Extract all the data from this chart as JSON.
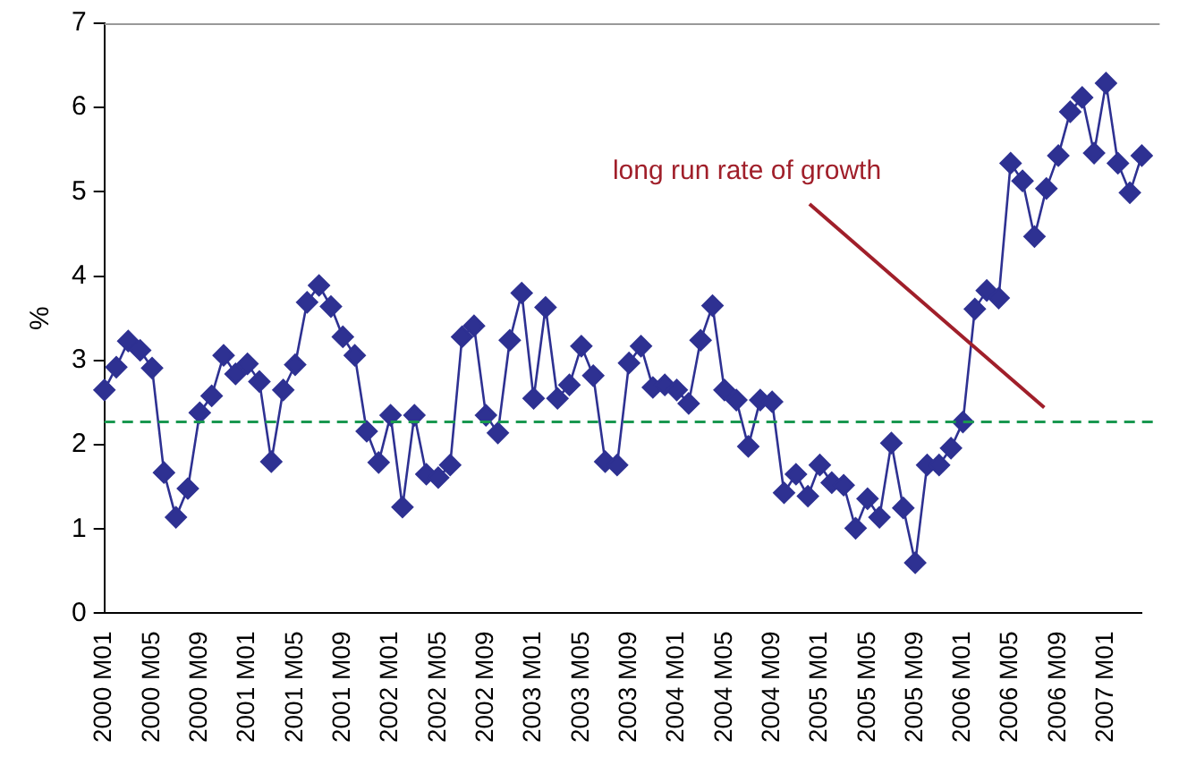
{
  "chart_data": {
    "type": "line",
    "ylabel": "%",
    "categories": [
      "2000 M01",
      null,
      null,
      null,
      "2000 M05",
      null,
      null,
      null,
      "2000 M09",
      null,
      null,
      null,
      "2001 M01",
      null,
      null,
      null,
      "2001 M05",
      null,
      null,
      null,
      "2001 M09",
      null,
      null,
      null,
      "2002 M01",
      null,
      null,
      null,
      "2002 M05",
      null,
      null,
      null,
      "2002 M09",
      null,
      null,
      null,
      "2003 M01",
      null,
      null,
      null,
      "2003 M05",
      null,
      null,
      null,
      "2003 M09",
      null,
      null,
      null,
      "2004 M01",
      null,
      null,
      null,
      "2004 M05",
      null,
      null,
      null,
      "2004 M09",
      null,
      null,
      null,
      "2005 M01",
      null,
      null,
      null,
      "2005 M05",
      null,
      null,
      null,
      "2005 M09",
      null,
      null,
      null,
      "2006 M01",
      null,
      null,
      null,
      "2006 M05",
      null,
      null,
      null,
      "2006 M09",
      null,
      null,
      null,
      "2007 M01",
      null,
      null,
      null
    ],
    "series": [
      {
        "color": "#2e3192",
        "values": [
          2.65,
          2.92,
          3.23,
          3.12,
          2.91,
          1.67,
          1.14,
          1.48,
          2.38,
          2.58,
          3.06,
          2.84,
          2.96,
          2.75,
          1.8,
          2.65,
          2.95,
          3.69,
          3.89,
          3.64,
          3.28,
          3.06,
          2.16,
          1.79,
          2.35,
          1.26,
          2.35,
          1.65,
          1.61,
          1.76,
          3.28,
          3.41,
          2.35,
          2.14,
          3.24,
          3.8,
          2.55,
          3.63,
          2.55,
          2.71,
          3.17,
          2.82,
          1.8,
          1.76,
          2.97,
          3.17,
          2.68,
          2.71,
          2.65,
          2.49,
          3.24,
          3.65,
          2.65,
          2.53,
          1.98,
          2.53,
          2.51,
          1.43,
          1.65,
          1.39,
          1.76,
          1.55,
          1.52,
          1.01,
          1.36,
          1.14,
          2.02,
          1.25,
          0.6,
          1.76,
          1.76,
          1.96,
          2.27,
          3.61,
          3.83,
          3.74,
          5.34,
          5.13,
          4.47,
          5.04,
          5.43,
          5.95,
          6.12,
          5.46,
          6.29,
          5.34,
          4.99,
          5.43
        ]
      }
    ],
    "ylim": [
      0,
      7
    ],
    "yticks": [
      0,
      1,
      2,
      3,
      4,
      5,
      6,
      7
    ],
    "grid": false,
    "legend": false,
    "marker": "diamond",
    "line_style": "solid",
    "ref_lines": [
      {
        "axis": "y",
        "value": 2.27,
        "label": "long run rate of growth",
        "color": "#1a9850",
        "line_style": "dashed"
      }
    ]
  }
}
